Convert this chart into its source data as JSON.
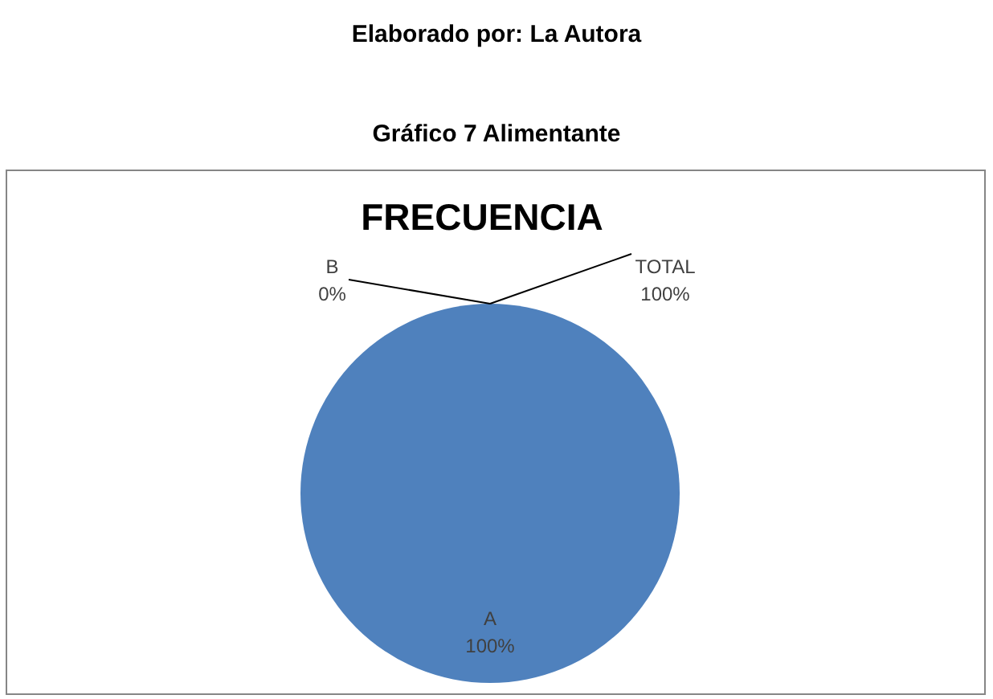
{
  "chart_data": {
    "type": "pie",
    "title": "Gráfico 7 Alimentante",
    "subtitle": "FRECUENCIA",
    "annotations": [
      "Elaborado por: La Autora"
    ],
    "categories": [
      "A",
      "B",
      "TOTAL"
    ],
    "values": [
      100,
      0,
      null
    ],
    "colors": [
      "#4f81bd",
      "#c0504d",
      "#9bbb59"
    ],
    "value_labels": [
      "100%",
      "0%",
      "100%"
    ]
  }
}
